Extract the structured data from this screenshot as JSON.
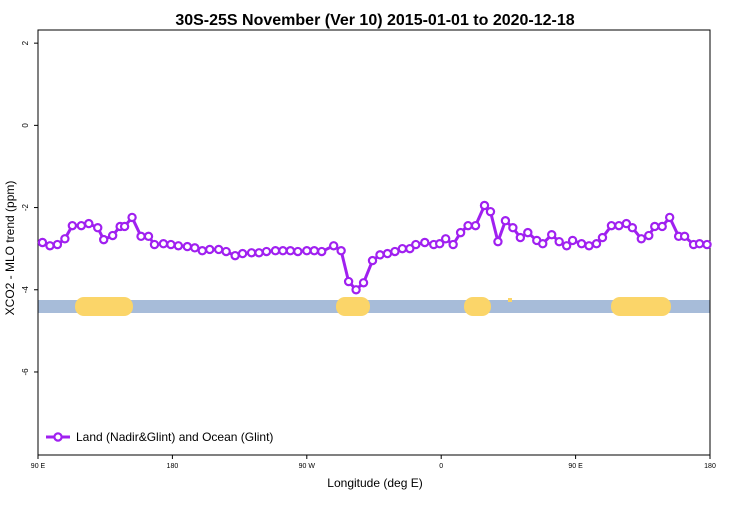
{
  "chart_data": {
    "type": "line",
    "title": "30S-25S November (Ver 10)   2015-01-01 to 2020-12-18",
    "x_label": "Longitude (deg E)",
    "y_label": "XCO2 - MLO trend (ppm)",
    "x": [
      93,
      98,
      103,
      108,
      113,
      119,
      124,
      130,
      134,
      140,
      145,
      148,
      153,
      159,
      164,
      168,
      174,
      179,
      184,
      190,
      195,
      200,
      205,
      211,
      216,
      222,
      227,
      233,
      238,
      243,
      249,
      254,
      259,
      264,
      270,
      275,
      280,
      288,
      293,
      298,
      303,
      308,
      314,
      319,
      324,
      329,
      334,
      339,
      343,
      349,
      355,
      359,
      363,
      368,
      373,
      378,
      383,
      389,
      393,
      398,
      403,
      408,
      413,
      418,
      424,
      428,
      434,
      439,
      444,
      448,
      454,
      459,
      464,
      468,
      474,
      479,
      484,
      488,
      494,
      499,
      503,
      508,
      513,
      519,
      523,
      529,
      533,
      538
    ],
    "series": [
      {
        "name": "Land (Nadir&Glint) and Ocean (Glint)",
        "color": "#a020f0",
        "values": [
          -2.85,
          -2.93,
          -2.9,
          -2.76,
          -2.44,
          -2.44,
          -2.39,
          -2.49,
          -2.78,
          -2.68,
          -2.46,
          -2.46,
          -2.24,
          -2.7,
          -2.7,
          -2.9,
          -2.88,
          -2.9,
          -2.93,
          -2.95,
          -2.98,
          -3.05,
          -3.02,
          -3.02,
          -3.07,
          -3.17,
          -3.12,
          -3.1,
          -3.1,
          -3.07,
          -3.05,
          -3.05,
          -3.05,
          -3.07,
          -3.05,
          -3.05,
          -3.07,
          -2.93,
          -3.05,
          -3.8,
          -4.0,
          -3.83,
          -3.29,
          -3.15,
          -3.12,
          -3.07,
          -3.0,
          -3.0,
          -2.9,
          -2.85,
          -2.9,
          -2.88,
          -2.76,
          -2.9,
          -2.61,
          -2.44,
          -2.44,
          -1.95,
          -2.1,
          -2.83,
          -2.32,
          -2.49,
          -2.73,
          -2.61,
          -2.8,
          -2.88,
          -2.66,
          -2.83,
          -2.93,
          -2.8,
          -2.88,
          -2.93,
          -2.88,
          -2.73,
          -2.44,
          -2.44,
          -2.39,
          -2.49,
          -2.76,
          -2.68,
          -2.46,
          -2.46,
          -2.24,
          -2.7,
          -2.7,
          -2.9,
          -2.88,
          -2.9
        ]
      }
    ],
    "xlim": [
      90,
      540
    ],
    "xticks": [
      {
        "value": 90,
        "label": "90 E"
      },
      180,
      {
        "value": 270,
        "label": "90 W"
      },
      0,
      {
        "value": 450,
        "label": "90 E"
      },
      {
        "value": 540,
        "label": "180"
      }
    ],
    "ylim": [
      -8.02,
      2.32
    ],
    "yticks": [
      2,
      0,
      -2,
      -4,
      -6
    ],
    "legend": "bottom-left"
  }
}
